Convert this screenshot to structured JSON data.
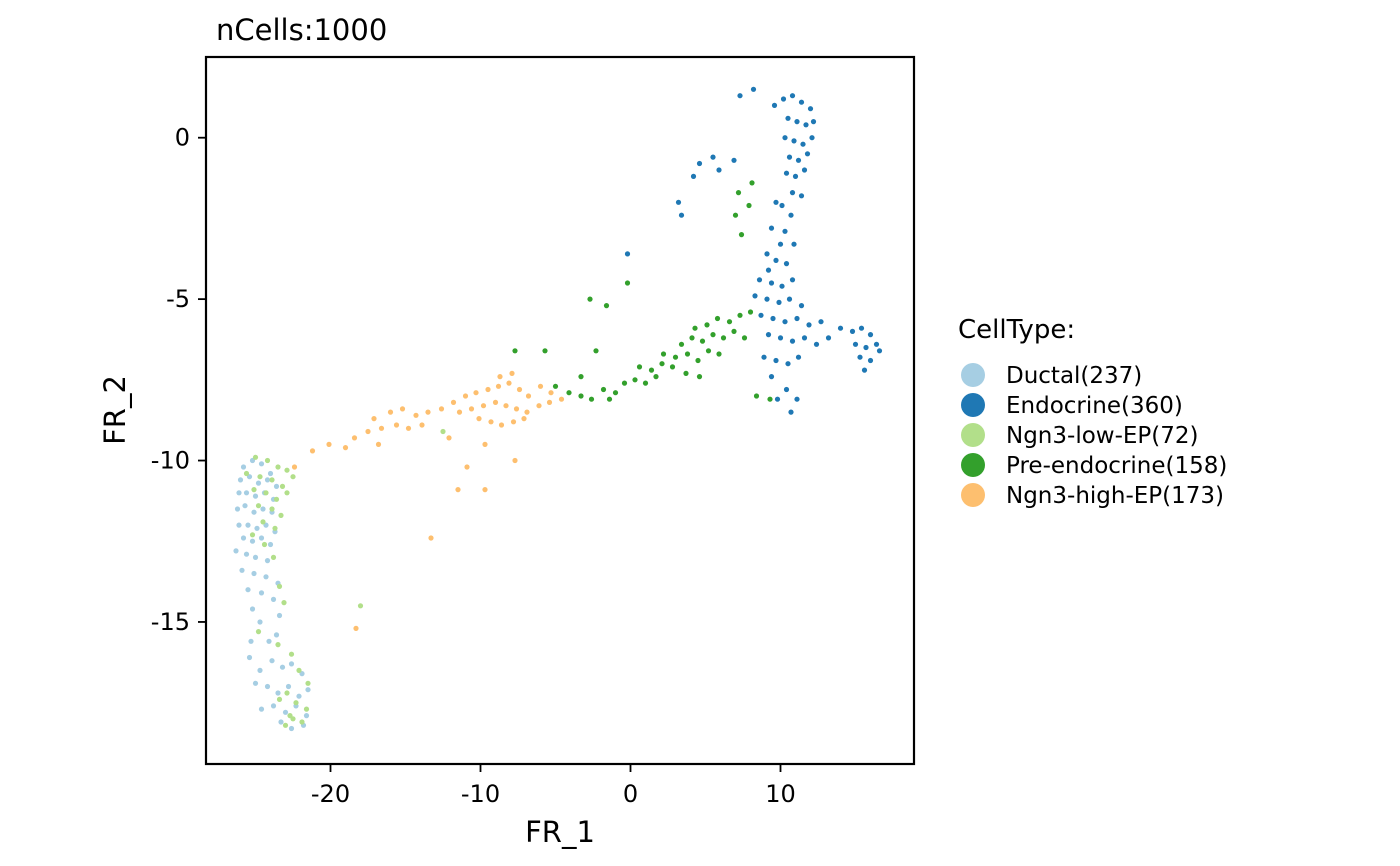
{
  "chart_data": {
    "type": "scatter",
    "title": "nCells:1000",
    "xlabel": "FR_1",
    "ylabel": "FR_2",
    "xlim": [
      -28.3,
      18.9
    ],
    "ylim": [
      -19.4,
      2.5
    ],
    "xticks": [
      -20,
      -10,
      0,
      10
    ],
    "yticks": [
      0,
      -5,
      -10,
      -15
    ],
    "grid": false,
    "legend_title": "CellType:",
    "legend_position": "right",
    "series": [
      {
        "name": "Ductal(237)",
        "color": "#A6CEE3",
        "points": [
          [
            -25.8,
            -10.2
          ],
          [
            -25.2,
            -10.0
          ],
          [
            -24.6,
            -10.1
          ],
          [
            -24.0,
            -10.4
          ],
          [
            -26.0,
            -10.6
          ],
          [
            -25.4,
            -10.5
          ],
          [
            -24.8,
            -10.7
          ],
          [
            -24.2,
            -10.6
          ],
          [
            -23.6,
            -10.8
          ],
          [
            -26.1,
            -11.0
          ],
          [
            -25.6,
            -11.0
          ],
          [
            -25.0,
            -11.1
          ],
          [
            -24.4,
            -11.0
          ],
          [
            -23.8,
            -11.2
          ],
          [
            -26.2,
            -11.5
          ],
          [
            -25.7,
            -11.4
          ],
          [
            -25.1,
            -11.6
          ],
          [
            -24.5,
            -11.5
          ],
          [
            -23.9,
            -11.6
          ],
          [
            -26.1,
            -12.0
          ],
          [
            -25.5,
            -12.0
          ],
          [
            -24.9,
            -12.1
          ],
          [
            -24.3,
            -12.0
          ],
          [
            -23.7,
            -12.2
          ],
          [
            -25.8,
            -12.4
          ],
          [
            -25.2,
            -12.5
          ],
          [
            -24.6,
            -12.4
          ],
          [
            -24.0,
            -12.6
          ],
          [
            -26.3,
            -12.8
          ],
          [
            -25.6,
            -12.9
          ],
          [
            -25.0,
            -13.0
          ],
          [
            -24.2,
            -13.1
          ],
          [
            -25.9,
            -13.4
          ],
          [
            -25.1,
            -13.5
          ],
          [
            -24.3,
            -13.6
          ],
          [
            -23.5,
            -13.8
          ],
          [
            -25.5,
            -14.0
          ],
          [
            -24.6,
            -14.1
          ],
          [
            -23.8,
            -14.3
          ],
          [
            -23.4,
            -14.8
          ],
          [
            -25.2,
            -14.6
          ],
          [
            -24.7,
            -15.0
          ],
          [
            -25.3,
            -15.6
          ],
          [
            -24.1,
            -15.6
          ],
          [
            -23.6,
            -15.4
          ],
          [
            -25.4,
            -16.1
          ],
          [
            -24.7,
            -16.5
          ],
          [
            -23.9,
            -16.2
          ],
          [
            -23.2,
            -16.4
          ],
          [
            -22.6,
            -16.3
          ],
          [
            -21.9,
            -16.6
          ],
          [
            -25.0,
            -16.9
          ],
          [
            -24.2,
            -17.0
          ],
          [
            -23.5,
            -17.2
          ],
          [
            -22.8,
            -17.0
          ],
          [
            -22.1,
            -17.3
          ],
          [
            -21.5,
            -17.1
          ],
          [
            -24.6,
            -17.7
          ],
          [
            -23.8,
            -17.6
          ],
          [
            -23.0,
            -17.8
          ],
          [
            -22.3,
            -17.6
          ],
          [
            -21.6,
            -17.9
          ],
          [
            -23.3,
            -18.1
          ],
          [
            -22.6,
            -18.3
          ],
          [
            -21.8,
            -18.2
          ]
        ]
      },
      {
        "name": "Endocrine(360)",
        "color": "#1F78B4",
        "points": [
          [
            7.3,
            1.3
          ],
          [
            8.2,
            1.5
          ],
          [
            9.6,
            1.0
          ],
          [
            10.2,
            1.2
          ],
          [
            10.8,
            1.3
          ],
          [
            11.4,
            1.1
          ],
          [
            12.0,
            0.9
          ],
          [
            10.5,
            0.6
          ],
          [
            11.1,
            0.5
          ],
          [
            11.7,
            0.4
          ],
          [
            12.2,
            0.5
          ],
          [
            10.3,
            0.0
          ],
          [
            10.9,
            -0.1
          ],
          [
            11.5,
            -0.2
          ],
          [
            12.1,
            0.0
          ],
          [
            10.6,
            -0.6
          ],
          [
            11.2,
            -0.7
          ],
          [
            11.8,
            -0.5
          ],
          [
            10.4,
            -1.1
          ],
          [
            11.0,
            -1.2
          ],
          [
            11.6,
            -1.0
          ],
          [
            10.8,
            -1.7
          ],
          [
            11.4,
            -1.8
          ],
          [
            10.1,
            -2.1
          ],
          [
            10.7,
            -2.4
          ],
          [
            9.7,
            -2.0
          ],
          [
            10.3,
            -2.9
          ],
          [
            9.4,
            -2.8
          ],
          [
            10.0,
            -3.3
          ],
          [
            10.9,
            -3.3
          ],
          [
            9.1,
            -3.6
          ],
          [
            9.7,
            -3.8
          ],
          [
            10.4,
            -3.9
          ],
          [
            9.2,
            -4.1
          ],
          [
            8.6,
            -4.4
          ],
          [
            9.4,
            -4.5
          ],
          [
            10.1,
            -4.6
          ],
          [
            10.8,
            -4.4
          ],
          [
            8.3,
            -4.9
          ],
          [
            9.1,
            -5.0
          ],
          [
            9.9,
            -5.1
          ],
          [
            10.6,
            -5.0
          ],
          [
            11.4,
            -5.2
          ],
          [
            8.7,
            -5.5
          ],
          [
            9.5,
            -5.6
          ],
          [
            10.3,
            -5.7
          ],
          [
            11.1,
            -5.6
          ],
          [
            11.9,
            -5.8
          ],
          [
            12.7,
            -5.7
          ],
          [
            9.2,
            -6.1
          ],
          [
            10.0,
            -6.2
          ],
          [
            10.8,
            -6.3
          ],
          [
            11.6,
            -6.2
          ],
          [
            12.4,
            -6.4
          ],
          [
            13.2,
            -6.2
          ],
          [
            14.0,
            -5.9
          ],
          [
            14.8,
            -6.0
          ],
          [
            15.4,
            -5.9
          ],
          [
            16.0,
            -6.1
          ],
          [
            15.0,
            -6.4
          ],
          [
            15.7,
            -6.5
          ],
          [
            16.4,
            -6.4
          ],
          [
            15.3,
            -6.8
          ],
          [
            16.0,
            -6.9
          ],
          [
            16.6,
            -6.6
          ],
          [
            8.9,
            -6.8
          ],
          [
            9.7,
            -6.9
          ],
          [
            10.5,
            -7.0
          ],
          [
            11.2,
            -6.8
          ],
          [
            15.6,
            -7.2
          ],
          [
            9.4,
            -7.4
          ],
          [
            10.4,
            -7.8
          ],
          [
            9.8,
            -8.1
          ],
          [
            11.1,
            -8.1
          ],
          [
            10.7,
            -8.5
          ],
          [
            5.5,
            -0.6
          ],
          [
            5.9,
            -1.0
          ],
          [
            4.6,
            -0.8
          ],
          [
            6.9,
            -0.7
          ],
          [
            4.2,
            -1.2
          ],
          [
            3.2,
            -2.0
          ],
          [
            3.4,
            -2.4
          ],
          [
            -0.2,
            -3.6
          ]
        ]
      },
      {
        "name": "Ngn3-low-EP(72)",
        "color": "#B2DF8A",
        "points": [
          [
            -25.0,
            -9.9
          ],
          [
            -24.2,
            -10.0
          ],
          [
            -23.5,
            -10.2
          ],
          [
            -22.9,
            -10.3
          ],
          [
            -25.6,
            -10.4
          ],
          [
            -24.7,
            -10.5
          ],
          [
            -23.9,
            -10.6
          ],
          [
            -23.2,
            -10.8
          ],
          [
            -25.1,
            -10.9
          ],
          [
            -24.3,
            -11.0
          ],
          [
            -23.6,
            -11.2
          ],
          [
            -22.9,
            -11.0
          ],
          [
            -24.8,
            -11.4
          ],
          [
            -23.9,
            -11.5
          ],
          [
            -23.3,
            -11.7
          ],
          [
            -24.5,
            -11.9
          ],
          [
            -23.7,
            -12.1
          ],
          [
            -25.2,
            -12.3
          ],
          [
            -23.8,
            -13.0
          ],
          [
            -23.4,
            -13.9
          ],
          [
            -23.1,
            -14.4
          ],
          [
            -24.8,
            -15.3
          ],
          [
            -23.5,
            -15.7
          ],
          [
            -22.6,
            -16.0
          ],
          [
            -22.1,
            -16.5
          ],
          [
            -21.5,
            -16.9
          ],
          [
            -22.9,
            -17.2
          ],
          [
            -22.3,
            -17.5
          ],
          [
            -21.6,
            -17.7
          ],
          [
            -23.4,
            -17.4
          ],
          [
            -22.7,
            -17.9
          ],
          [
            -21.9,
            -18.1
          ],
          [
            -23.0,
            -18.2
          ],
          [
            -22.5,
            -18.0
          ],
          [
            -18.0,
            -14.5
          ],
          [
            -12.5,
            -9.1
          ],
          [
            -24.4,
            -12.6
          ],
          [
            -22.5,
            -10.5
          ]
        ]
      },
      {
        "name": "Pre-endocrine(158)",
        "color": "#33A02C",
        "points": [
          [
            -5.0,
            -7.7
          ],
          [
            -4.1,
            -7.9
          ],
          [
            -3.3,
            -8.0
          ],
          [
            -2.6,
            -8.1
          ],
          [
            -1.8,
            -7.8
          ],
          [
            -1.0,
            -7.9
          ],
          [
            -0.4,
            -7.6
          ],
          [
            0.3,
            -7.5
          ],
          [
            1.0,
            -7.6
          ],
          [
            1.7,
            -7.4
          ],
          [
            0.6,
            -7.1
          ],
          [
            1.4,
            -7.2
          ],
          [
            2.1,
            -7.0
          ],
          [
            2.8,
            -7.1
          ],
          [
            2.2,
            -6.7
          ],
          [
            3.0,
            -6.8
          ],
          [
            3.8,
            -6.7
          ],
          [
            4.5,
            -6.9
          ],
          [
            5.2,
            -6.6
          ],
          [
            5.9,
            -6.7
          ],
          [
            3.4,
            -6.4
          ],
          [
            4.1,
            -6.2
          ],
          [
            4.8,
            -6.3
          ],
          [
            5.5,
            -6.1
          ],
          [
            6.2,
            -6.2
          ],
          [
            6.9,
            -6.0
          ],
          [
            7.6,
            -6.2
          ],
          [
            4.3,
            -5.9
          ],
          [
            5.1,
            -5.8
          ],
          [
            5.8,
            -5.6
          ],
          [
            6.6,
            -5.7
          ],
          [
            7.3,
            -5.5
          ],
          [
            8.0,
            -5.4
          ],
          [
            3.7,
            -7.3
          ],
          [
            4.6,
            -7.4
          ],
          [
            -2.7,
            -5.0
          ],
          [
            -1.6,
            -5.2
          ],
          [
            -0.2,
            -4.5
          ],
          [
            -3.3,
            -7.4
          ],
          [
            -1.4,
            -8.1
          ],
          [
            8.4,
            -8.0
          ],
          [
            9.3,
            -8.1
          ],
          [
            7.0,
            -2.4
          ],
          [
            7.4,
            -3.0
          ],
          [
            8.1,
            -1.4
          ],
          [
            7.9,
            -2.1
          ],
          [
            7.2,
            -1.7
          ],
          [
            -5.7,
            -6.6
          ],
          [
            -7.7,
            -6.6
          ],
          [
            -2.3,
            -6.6
          ]
        ]
      },
      {
        "name": "Ngn3-high-EP(173)",
        "color": "#FDBF6F",
        "points": [
          [
            -22.4,
            -10.2
          ],
          [
            -21.2,
            -9.7
          ],
          [
            -20.1,
            -9.5
          ],
          [
            -19.0,
            -9.6
          ],
          [
            -18.4,
            -9.3
          ],
          [
            -17.5,
            -9.1
          ],
          [
            -16.6,
            -9.0
          ],
          [
            -17.1,
            -8.7
          ],
          [
            -16.0,
            -8.5
          ],
          [
            -15.2,
            -8.4
          ],
          [
            -14.3,
            -8.6
          ],
          [
            -13.5,
            -8.5
          ],
          [
            -12.6,
            -8.4
          ],
          [
            -11.8,
            -8.2
          ],
          [
            -11.0,
            -8.0
          ],
          [
            -10.3,
            -7.9
          ],
          [
            -9.5,
            -7.8
          ],
          [
            -8.8,
            -7.7
          ],
          [
            -8.1,
            -7.6
          ],
          [
            -7.4,
            -7.8
          ],
          [
            -6.8,
            -8.0
          ],
          [
            -11.4,
            -8.5
          ],
          [
            -10.6,
            -8.4
          ],
          [
            -9.8,
            -8.3
          ],
          [
            -9.0,
            -8.2
          ],
          [
            -8.3,
            -8.3
          ],
          [
            -7.6,
            -8.4
          ],
          [
            -6.9,
            -8.5
          ],
          [
            -6.1,
            -8.3
          ],
          [
            -5.4,
            -8.2
          ],
          [
            -4.6,
            -8.1
          ],
          [
            -10.1,
            -8.7
          ],
          [
            -9.3,
            -8.8
          ],
          [
            -8.6,
            -8.9
          ],
          [
            -7.8,
            -8.8
          ],
          [
            -7.1,
            -8.7
          ],
          [
            -15.6,
            -8.9
          ],
          [
            -14.8,
            -9.0
          ],
          [
            -13.9,
            -8.9
          ],
          [
            -16.8,
            -9.5
          ],
          [
            -12.1,
            -9.3
          ],
          [
            -9.7,
            -9.5
          ],
          [
            -10.9,
            -10.2
          ],
          [
            -7.7,
            -10.0
          ],
          [
            -11.5,
            -10.9
          ],
          [
            -9.7,
            -10.9
          ],
          [
            -13.3,
            -12.4
          ],
          [
            -18.3,
            -15.2
          ],
          [
            -8.7,
            -7.4
          ],
          [
            -7.9,
            -7.3
          ],
          [
            -6.0,
            -7.7
          ],
          [
            -5.3,
            -7.9
          ]
        ]
      }
    ]
  }
}
